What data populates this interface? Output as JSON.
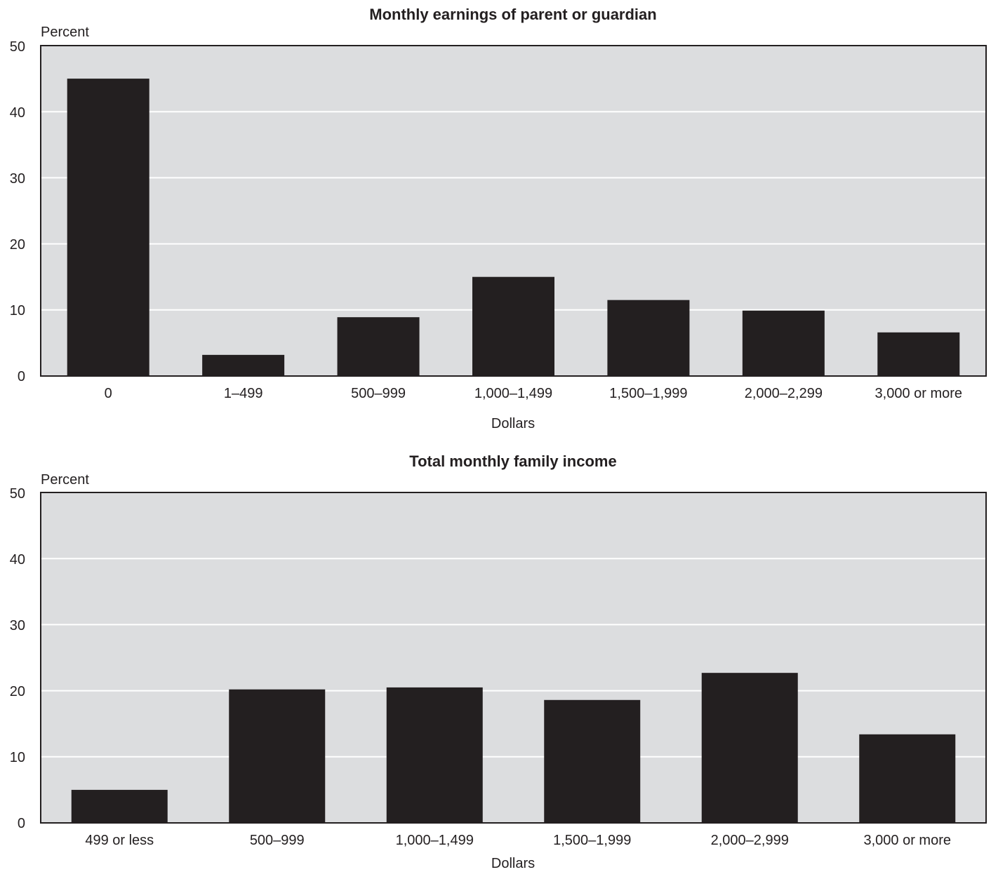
{
  "chart_data": [
    {
      "type": "bar",
      "title": "Monthly earnings of parent or guardian",
      "ylabel": "Percent",
      "xlabel": "Dollars",
      "ylim": [
        0,
        50
      ],
      "yticks": [
        "0",
        "10",
        "20",
        "30",
        "40",
        "50"
      ],
      "grid": true,
      "categories": [
        "0",
        "1–499",
        "500–999",
        "1,000–1,499",
        "1,500–1,999",
        "2,000–2,299",
        "3,000 or more"
      ],
      "values": [
        45,
        3.2,
        8.9,
        15,
        11.5,
        9.9,
        6.6
      ],
      "colors": {
        "bar": "#231f20",
        "plot_background": "#dcdddf",
        "grid": "#ffffff"
      }
    },
    {
      "type": "bar",
      "title": "Total monthly family income",
      "ylabel": "Percent",
      "xlabel": "Dollars",
      "ylim": [
        0,
        50
      ],
      "yticks": [
        "0",
        "10",
        "20",
        "30",
        "40",
        "50"
      ],
      "grid": true,
      "categories": [
        "499 or less",
        "500–999",
        "1,000–1,499",
        "1,500–1,999",
        "2,000–2,999",
        "3,000 or more"
      ],
      "values": [
        5,
        20.2,
        20.5,
        18.6,
        22.7,
        13.4
      ],
      "colors": {
        "bar": "#231f20",
        "plot_background": "#dcdddf",
        "grid": "#ffffff"
      }
    }
  ]
}
